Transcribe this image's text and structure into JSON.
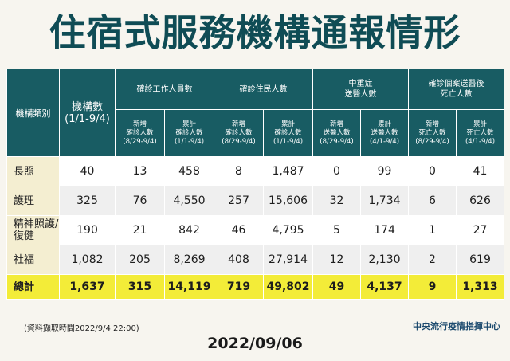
{
  "title": "住宿式服務機構通報情形",
  "header": {
    "type_label": "機構類別",
    "institutions_label": "機構數",
    "institutions_sub": "(1/1-9/4)",
    "groups": [
      "確診工作人員數",
      "確診住民人數",
      "中重症\n送醫人數",
      "確診個案送醫後\n死亡人數"
    ],
    "subheaders": [
      "新增\n確診人數\n(8/29-9/4)",
      "累計\n確診人數\n(1/1-9/4)",
      "新增\n確診人數\n(8/29-9/4)",
      "累計\n確診人數\n(1/1-9/4)",
      "新增\n送醫人數\n(8/29-9/4)",
      "累計\n送醫人數\n(4/1-9/4)",
      "新增\n死亡人數\n(8/29-9/4)",
      "累計\n死亡人數\n(4/1-9/4)"
    ]
  },
  "rows": [
    {
      "category": "長照",
      "values": [
        "40",
        "13",
        "458",
        "8",
        "1,487",
        "0",
        "99",
        "0",
        "41"
      ]
    },
    {
      "category": "護理",
      "values": [
        "325",
        "76",
        "4,550",
        "257",
        "15,606",
        "32",
        "1,734",
        "6",
        "626"
      ]
    },
    {
      "category": "精神照護/\n復健",
      "values": [
        "190",
        "21",
        "842",
        "46",
        "4,795",
        "5",
        "174",
        "1",
        "27"
      ]
    },
    {
      "category": "社福",
      "values": [
        "1,082",
        "205",
        "8,269",
        "408",
        "27,914",
        "12",
        "2,130",
        "2",
        "619"
      ]
    }
  ],
  "total": {
    "category": "總計",
    "values": [
      "1,637",
      "315",
      "14,119",
      "719",
      "49,802",
      "49",
      "4,137",
      "9",
      "1,313"
    ]
  },
  "source_note": "(資料擷取時間2022/9/4 22:00)",
  "agency": "中央流行疫情指揮中心",
  "date": "2022/09/06",
  "colors": {
    "header_bg": "#185c63",
    "category_bg": "#f4eed1",
    "total_bg": "#f3ec38",
    "title": "#0f4c55"
  }
}
